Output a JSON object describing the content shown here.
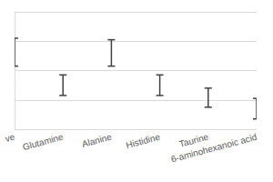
{
  "chart_data": {
    "type": "errorbar",
    "categories": [
      "ve",
      "Glutamine",
      "Alanine",
      "Histidine",
      "Taurine",
      "6-aminohexanoic acid"
    ],
    "low": [
      2.15,
      1.15,
      2.15,
      1.15,
      0.75,
      0.35
    ],
    "high": [
      3.1,
      1.85,
      3.05,
      1.85,
      1.4,
      1.05
    ],
    "color": "#404040",
    "ylim": [
      0,
      4
    ],
    "yticks": [
      0,
      1,
      2,
      3,
      4
    ],
    "grid": true,
    "tick_labels": "x"
  }
}
